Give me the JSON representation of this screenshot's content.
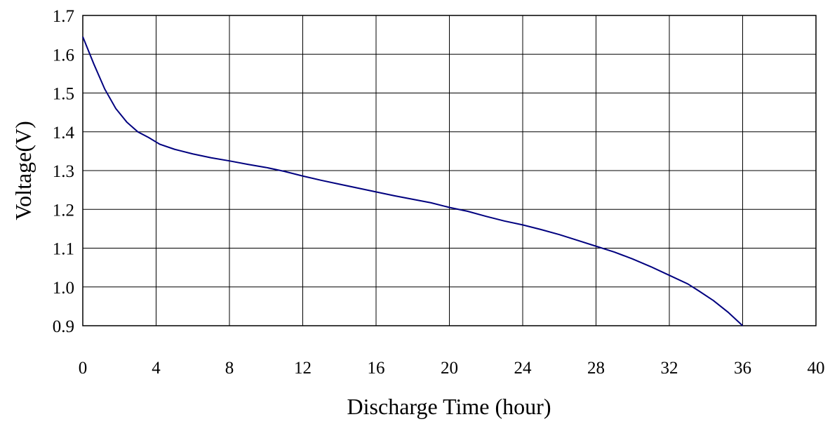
{
  "chart_data": {
    "type": "line",
    "title": "",
    "xlabel": "Discharge Time (hour)",
    "ylabel": "Voltage(V)",
    "xlim": [
      0,
      40
    ],
    "ylim": [
      0.9,
      1.7
    ],
    "xticks": [
      0,
      4,
      8,
      12,
      16,
      20,
      24,
      28,
      32,
      36,
      40
    ],
    "yticks": [
      "0.9",
      "1.0",
      "1.1",
      "1.2",
      "1.3",
      "1.4",
      "1.5",
      "1.6",
      "1.7"
    ],
    "grid": true,
    "legend": "none",
    "colors": {
      "line": "#00007f",
      "grid": "#000000",
      "axis": "#000000"
    },
    "series": [
      {
        "x": [
          0,
          0.6,
          1.2,
          1.8,
          2.4,
          3,
          3.6,
          4.2,
          5,
          6,
          7,
          8,
          9,
          10,
          11,
          12,
          13,
          14,
          15,
          16,
          17,
          18,
          19,
          20,
          21,
          22,
          23,
          24,
          25,
          26,
          27,
          28,
          29,
          30,
          31,
          32,
          33,
          33.6,
          34.4,
          35.2,
          36
        ],
        "y": [
          1.645,
          1.575,
          1.51,
          1.46,
          1.425,
          1.4,
          1.385,
          1.368,
          1.355,
          1.343,
          1.333,
          1.325,
          1.316,
          1.308,
          1.298,
          1.286,
          1.275,
          1.265,
          1.255,
          1.245,
          1.235,
          1.226,
          1.217,
          1.205,
          1.195,
          1.182,
          1.17,
          1.16,
          1.148,
          1.135,
          1.12,
          1.105,
          1.09,
          1.072,
          1.052,
          1.03,
          1.008,
          0.99,
          0.965,
          0.935,
          0.9
        ]
      }
    ]
  }
}
